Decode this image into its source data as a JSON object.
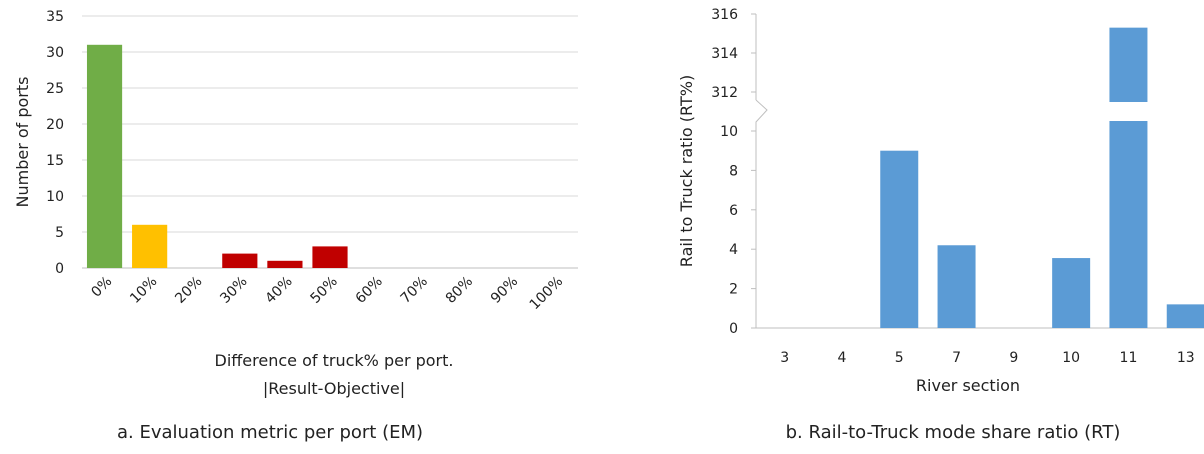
{
  "charts_ui": {
    "a": {
      "caption": "a. Evaluation metric per port (EM)"
    },
    "b": {
      "caption": "b. Rail-to-Truck mode share ratio (RT)"
    }
  },
  "chart_data": [
    {
      "type": "bar",
      "title": "",
      "xlabel": "Difference of truck% per port.",
      "xlabel2": "|Result-Objective|",
      "ylabel": "Number of ports",
      "categories": [
        "0%",
        "10%",
        "20%",
        "30%",
        "40%",
        "50%",
        "60%",
        "70%",
        "80%",
        "90%",
        "100%"
      ],
      "values": [
        31,
        6,
        0,
        2,
        1,
        3,
        0,
        0,
        0,
        0,
        0
      ],
      "bar_colors": [
        "#70ad47",
        "#ffc000",
        "#c00000",
        "#c00000",
        "#c00000",
        "#c00000",
        "#c00000",
        "#c00000",
        "#c00000",
        "#c00000",
        "#c00000"
      ],
      "ylim": [
        0,
        35
      ],
      "yticks": [
        "0",
        "5",
        "10",
        "15",
        "20",
        "25",
        "30",
        "35"
      ],
      "grid": true
    },
    {
      "type": "bar",
      "title": "",
      "xlabel": "River section",
      "ylabel": "Rail to Truck ratio (RT%)",
      "categories": [
        "3",
        "4",
        "5",
        "7",
        "9",
        "10",
        "11",
        "13"
      ],
      "values": [
        0,
        0,
        9.0,
        4.2,
        0,
        3.55,
        315.3,
        1.2
      ],
      "bar_color": "#5b9bd5",
      "axis_break": {
        "lower": [
          0,
          10
        ],
        "upper": [
          312,
          316
        ]
      },
      "yticks_lower": [
        "0",
        "2",
        "4",
        "6",
        "8",
        "10"
      ],
      "yticks_upper": [
        "312",
        "314",
        "316"
      ],
      "grid": false
    }
  ]
}
